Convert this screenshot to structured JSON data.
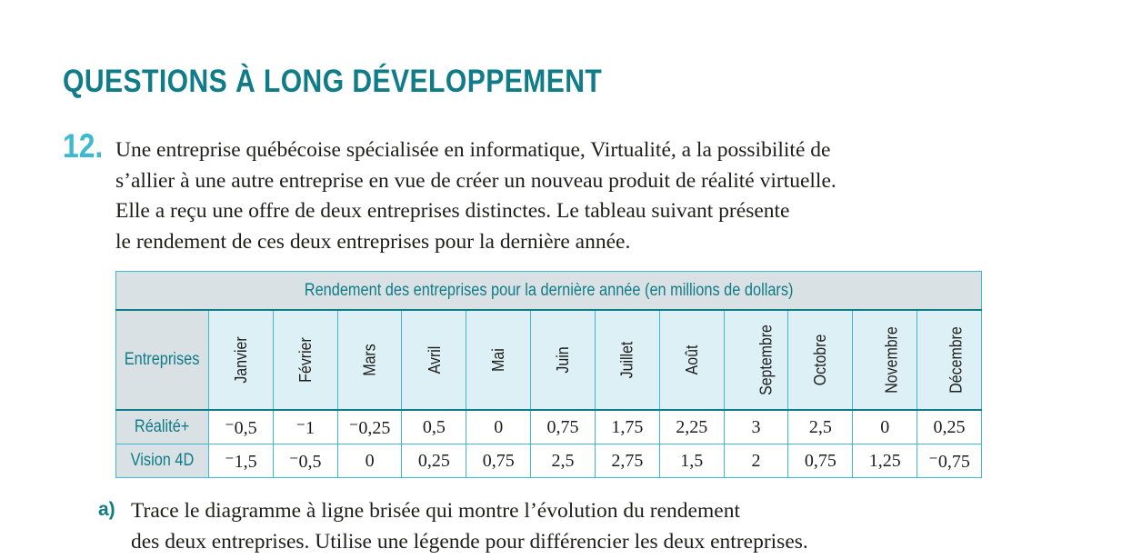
{
  "section_title": "QUESTIONS À LONG DÉVELOPPEMENT",
  "question": {
    "number": "12.",
    "lines": [
      "Une entreprise québécoise spécialisée en informatique, Virtualité, a la possibilité de",
      "s’allier à une autre entreprise en vue de créer un nouveau produit de réalité virtuelle.",
      "Elle a reçu une offre de deux entreprises distinctes. Le tableau suivant présente",
      "le rendement de ces deux entreprises pour la dernière année."
    ]
  },
  "table": {
    "caption": "Rendement des entreprises pour la dernière année (en millions de dollars)",
    "row_header": "Entreprises",
    "months": [
      "Janvier",
      "Février",
      "Mars",
      "Avril",
      "Mai",
      "Juin",
      "Juillet",
      "Août",
      "Septembre",
      "Octobre",
      "Novembre",
      "Décembre"
    ],
    "rows": [
      {
        "name": "Réalité+",
        "values": [
          "⁻0,5",
          "⁻1",
          "⁻0,25",
          "0,5",
          "0",
          "0,75",
          "1,75",
          "2,25",
          "3",
          "2,5",
          "0",
          "0,25"
        ]
      },
      {
        "name": "Vision 4D",
        "values": [
          "⁻1,5",
          "⁻0,5",
          "0",
          "0,25",
          "0,75",
          "2,5",
          "2,75",
          "1,5",
          "2",
          "0,75",
          "1,25",
          "⁻0,75"
        ]
      }
    ]
  },
  "sub_question": {
    "label": "a)",
    "lines": [
      "Trace le diagramme à ligne brisée qui montre l’évolution du rendement",
      "des deux entreprises. Utilise une légende pour différencier les deux entreprises."
    ]
  }
}
